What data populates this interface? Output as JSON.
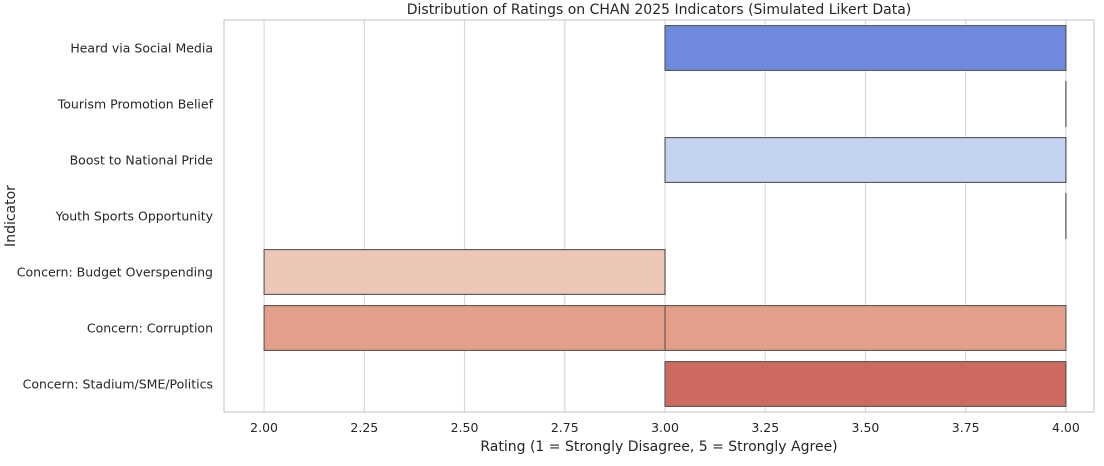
{
  "chart_data": {
    "type": "box",
    "orientation": "horizontal",
    "title": "Distribution of Ratings on CHAN 2025 Indicators (Simulated Likert Data)",
    "xlabel": "Rating (1 = Strongly Disagree, 5 = Strongly Agree)",
    "ylabel": "Indicator",
    "xlim": [
      1.9,
      4.07
    ],
    "xticks": [
      2.0,
      2.25,
      2.5,
      2.75,
      3.0,
      3.25,
      3.5,
      3.75,
      4.0
    ],
    "xtick_labels": [
      "2.00",
      "2.25",
      "2.50",
      "2.75",
      "3.00",
      "3.25",
      "3.50",
      "3.75",
      "4.00"
    ],
    "grid": true,
    "categories": [
      "Heard via Social Media",
      "Tourism Promotion Belief",
      "Boost to National Pride",
      "Youth Sports Opportunity",
      "Concern: Budget Overspending",
      "Concern: Corruption",
      "Concern: Stadium/SME/Politics"
    ],
    "boxes": [
      {
        "q1": 3.0,
        "median": 4.0,
        "q3": 4.0,
        "color": "#7189dc"
      },
      {
        "q1": 4.0,
        "median": 4.0,
        "q3": 4.0,
        "color": "#a3bdf4"
      },
      {
        "q1": 3.0,
        "median": 4.0,
        "q3": 4.0,
        "color": "#c3d3f1"
      },
      {
        "q1": 4.0,
        "median": 4.0,
        "q3": 4.0,
        "color": "#dddcdc"
      },
      {
        "q1": 2.0,
        "median": 3.0,
        "q3": 3.0,
        "color": "#ecc7b5"
      },
      {
        "q1": 2.0,
        "median": 3.0,
        "q3": 4.0,
        "color": "#e39f89"
      },
      {
        "q1": 3.0,
        "median": 4.0,
        "q3": 4.0,
        "color": "#cc6a5f"
      }
    ]
  }
}
